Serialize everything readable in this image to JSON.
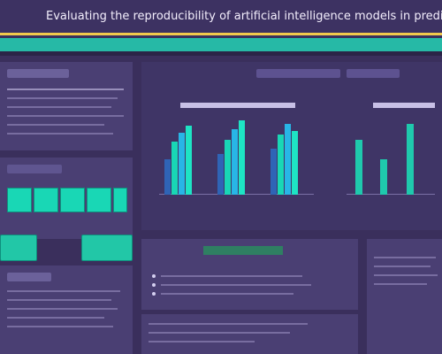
{
  "header": {
    "title": "Evaluating the reproducibility of artificial intelligence models in predicting mental health"
  },
  "left_column": {
    "top_block_title": "",
    "middle_block_title": "",
    "bottom_block_title": ""
  },
  "charts": {
    "left_chart_title": "",
    "right_chart_title": ""
  },
  "colors": {
    "background": "#3a2f5c",
    "accent_teal": "#19d7b5",
    "accent_gold": "#f2c94c"
  },
  "icons": {
    "bullet": "dot-icon"
  }
}
